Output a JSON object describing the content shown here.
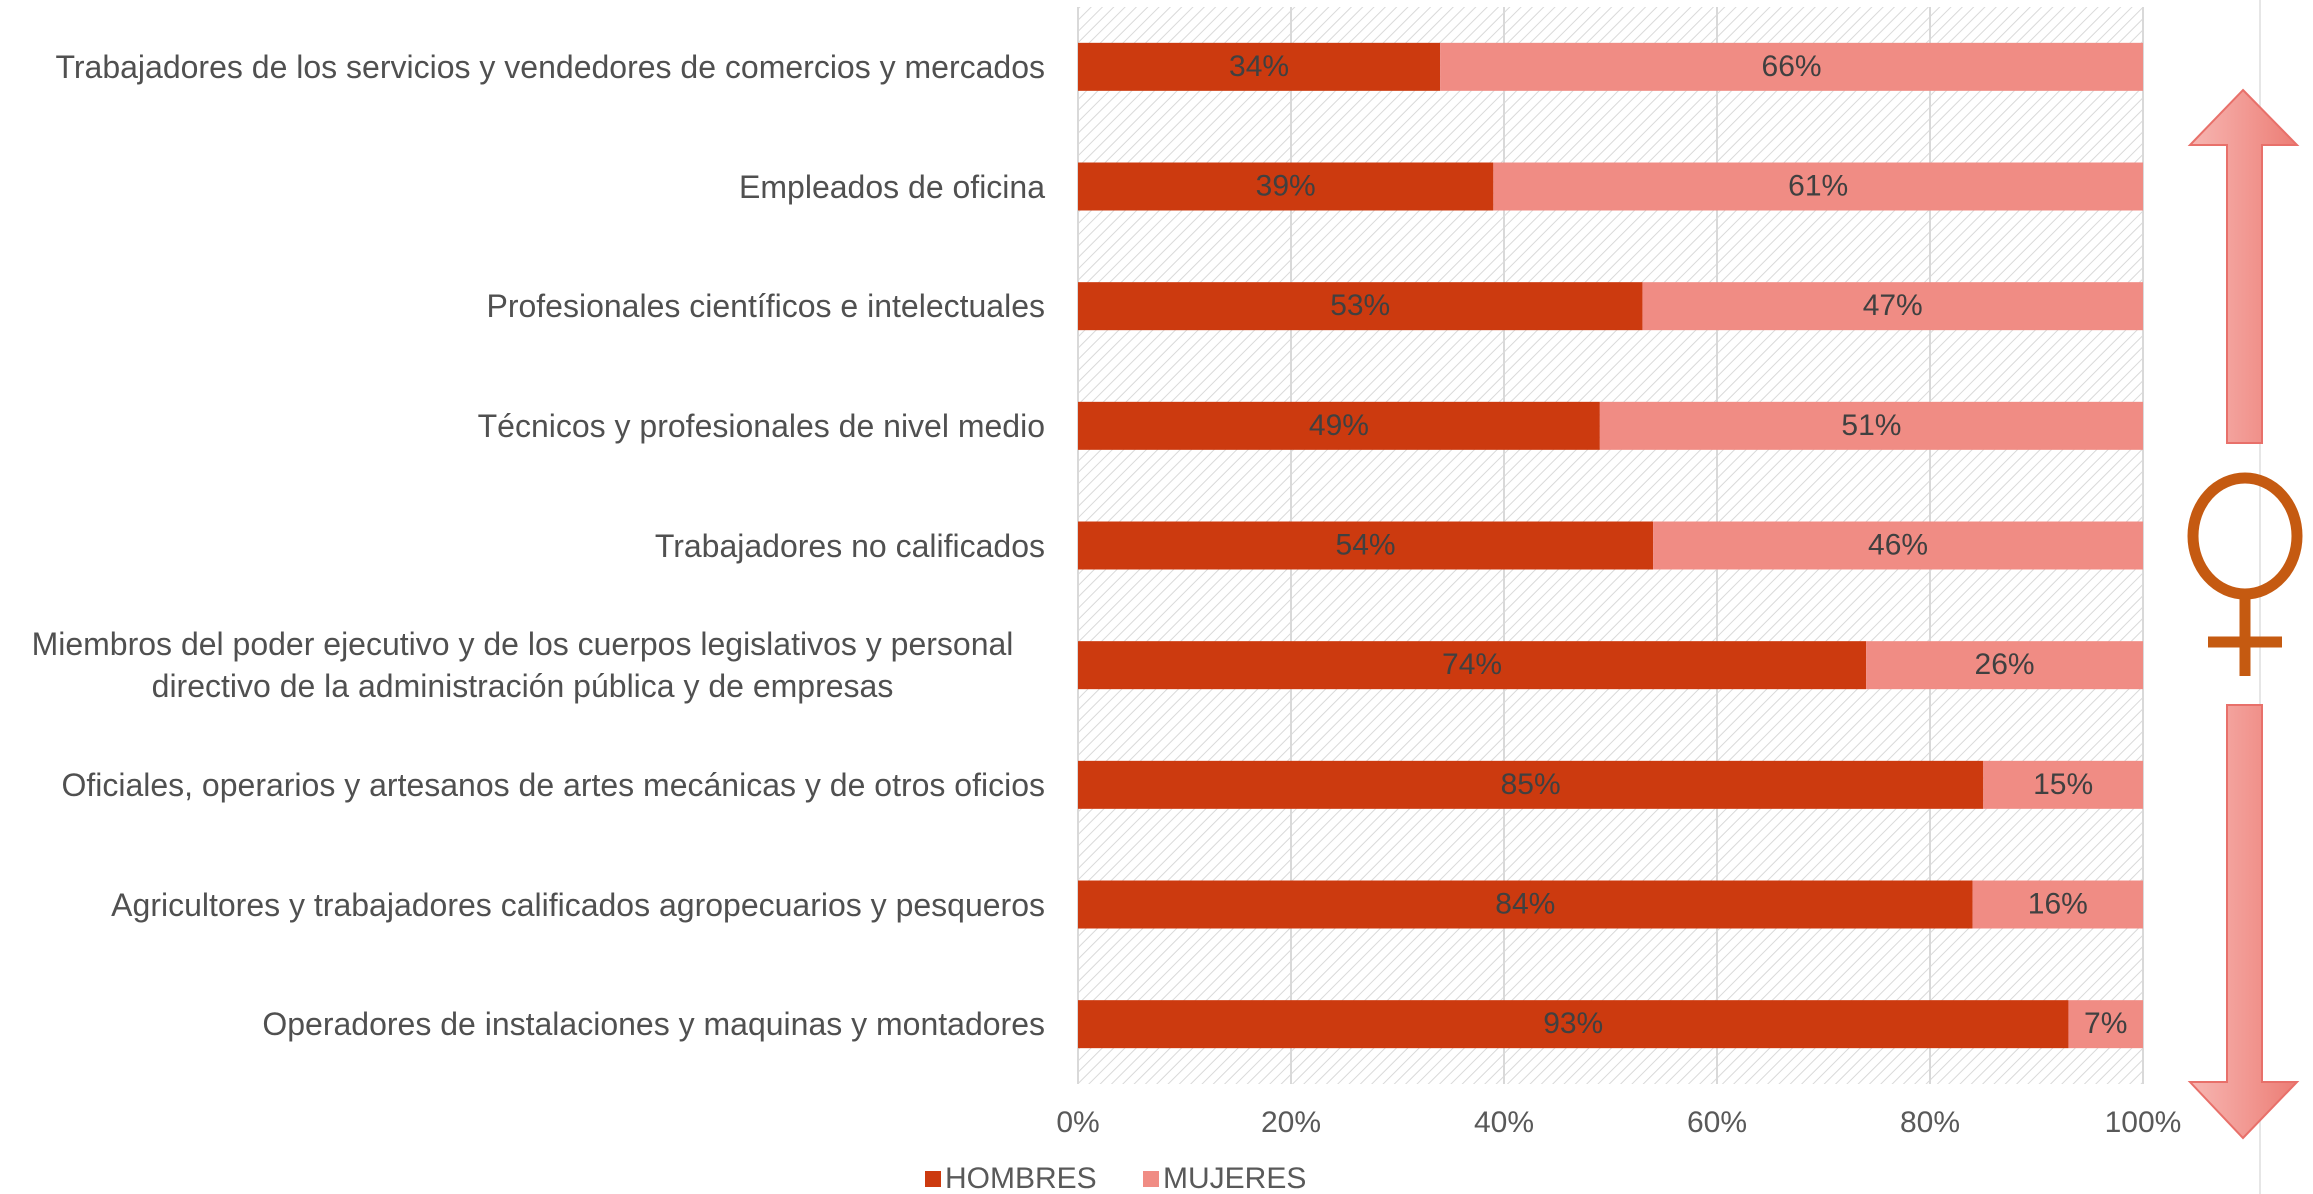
{
  "chart_data": {
    "type": "stacked_bar_horizontal",
    "categories": [
      "Trabajadores de los servicios y vendedores de comercios y mercados",
      "Empleados de oficina",
      "Profesionales científicos e intelectuales",
      "Técnicos y profesionales de nivel medio",
      "Trabajadores no calificados",
      "Miembros del poder ejecutivo y de los cuerpos legislativos y personal directivo de la administración pública y de empresas",
      "Oficiales, operarios y artesanos de artes mecánicas y de otros oficios",
      "Agricultores y trabajadores calificados agropecuarios y pesqueros",
      "Operadores de instalaciones y maquinas y montadores"
    ],
    "series": [
      {
        "name": "HOMBRES",
        "color": "#cc3a0f",
        "values": [
          34,
          39,
          53,
          49,
          54,
          74,
          85,
          84,
          93
        ],
        "value_labels": [
          "34%",
          "39%",
          "53%",
          "49%",
          "54%",
          "74%",
          "85%",
          "84%",
          "93%"
        ]
      },
      {
        "name": "MUJERES",
        "color": "#f08c84",
        "values": [
          66,
          61,
          47,
          51,
          46,
          26,
          15,
          16,
          7
        ],
        "value_labels": [
          "66%",
          "61%",
          "47%",
          "51%",
          "46%",
          "26%",
          "15%",
          "16%",
          "7%"
        ]
      }
    ],
    "xlim": [
      0,
      100
    ],
    "xticks": [
      {
        "value": 0,
        "label": "0%"
      },
      {
        "value": 20,
        "label": "20%"
      },
      {
        "value": 40,
        "label": "40%"
      },
      {
        "value": 60,
        "label": "60%"
      },
      {
        "value": 80,
        "label": "80%"
      },
      {
        "value": 100,
        "label": "100%"
      }
    ],
    "grid": true,
    "legend": "bottom"
  }
}
